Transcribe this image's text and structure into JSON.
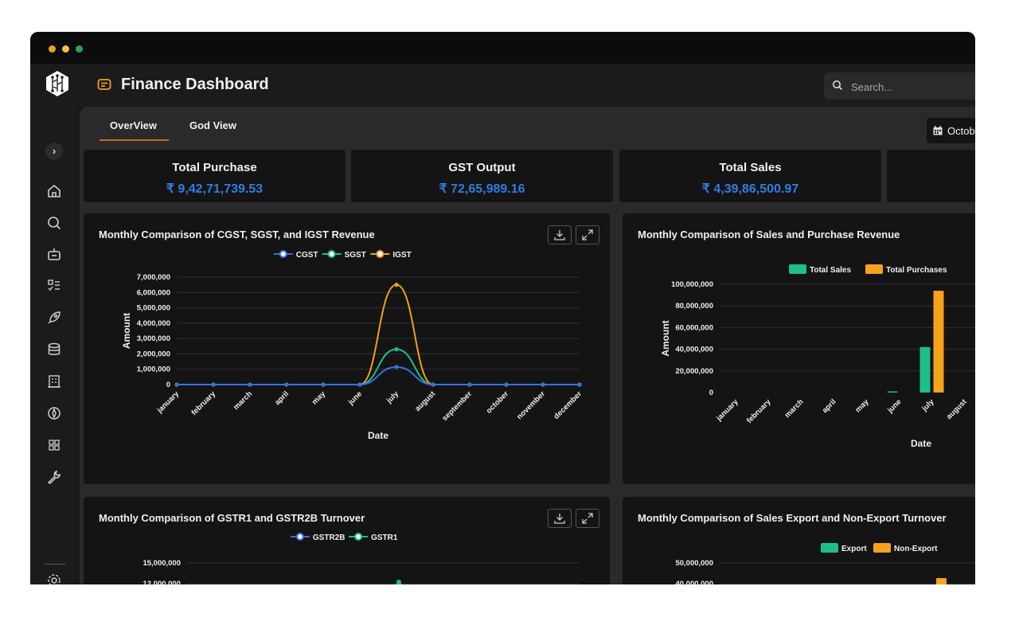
{
  "app": {
    "title": "Finance Dashboard",
    "search_placeholder": "Search...",
    "accent": "#c0701a",
    "value_color": "#2f7de1"
  },
  "sidebar": {
    "icons": [
      "home-icon",
      "search-icon",
      "robot-icon",
      "checklist-icon",
      "rocket-icon",
      "database-icon",
      "building-icon",
      "compass-icon",
      "grid-icon",
      "wrench-icon",
      "settings-icon",
      "code-icon"
    ]
  },
  "tabs": [
    {
      "label": "OverView",
      "active": true
    },
    {
      "label": "God View",
      "active": false
    }
  ],
  "date_filter": {
    "label": "Octob"
  },
  "stats": [
    {
      "label": "Total Purchase",
      "value": "₹ 9,42,71,739.53"
    },
    {
      "label": "GST Output",
      "value": "₹ 72,65,989.16"
    },
    {
      "label": "Total Sales",
      "value": "₹ 4,39,86,500.97"
    },
    {
      "label": "",
      "value": ""
    }
  ],
  "chart_data": [
    {
      "type": "line",
      "title": "Monthly Comparison of CGST, SGST, and IGST Revenue",
      "xlabel": "Date",
      "ylabel": "Amount",
      "ylim": [
        0,
        7000000
      ],
      "yticks": [
        "7,000,000",
        "6,000,000",
        "5,000,000",
        "4,000,000",
        "3,000,000",
        "2,000,000",
        "1,000,000",
        "0"
      ],
      "categories": [
        "january",
        "february",
        "march",
        "april",
        "may",
        "june",
        "july",
        "august",
        "september",
        "october",
        "november",
        "december"
      ],
      "series": [
        {
          "name": "CGST",
          "color": "#3b6fe0",
          "values": [
            0,
            0,
            0,
            0,
            0,
            0,
            1150000,
            0,
            0,
            0,
            0,
            0
          ]
        },
        {
          "name": "SGST",
          "color": "#1dbf85",
          "values": [
            0,
            0,
            0,
            0,
            0,
            0,
            2300000,
            0,
            0,
            0,
            0,
            0
          ]
        },
        {
          "name": "IGST",
          "color": "#f0a01c",
          "values": [
            0,
            0,
            0,
            0,
            0,
            0,
            6500000,
            0,
            0,
            0,
            0,
            0
          ]
        }
      ],
      "legend": "top-center"
    },
    {
      "type": "bar",
      "title": "Monthly Comparison of Sales and Purchase Revenue",
      "xlabel": "Date",
      "ylabel": "Amount",
      "ylim": [
        0,
        100000000
      ],
      "yticks": [
        "100,000,000",
        "80,000,000",
        "60,000,000",
        "40,000,000",
        "20,000,000",
        "0"
      ],
      "categories": [
        "january",
        "february",
        "march",
        "april",
        "may",
        "june",
        "july",
        "august"
      ],
      "series": [
        {
          "name": "Total Sales",
          "color": "#1dbf85",
          "values": [
            0,
            0,
            0,
            0,
            0,
            700000,
            42000000,
            0
          ]
        },
        {
          "name": "Total Purchases",
          "color": "#f7a21b",
          "values": [
            0,
            0,
            0,
            0,
            0,
            0,
            94000000,
            0
          ]
        }
      ],
      "legend": "top-right"
    },
    {
      "type": "line",
      "title": "Monthly Comparison of GSTR1 and GSTR2B Turnover",
      "ylim": [
        0,
        15000000
      ],
      "yticks": [
        "15,000,000",
        "12,000,000"
      ],
      "series": [
        {
          "name": "GSTR2B",
          "color": "#3b6fe0"
        },
        {
          "name": "GSTR1",
          "color": "#1dbf85"
        }
      ],
      "legend": "top-center"
    },
    {
      "type": "bar",
      "title": "Monthly Comparison of Sales Export and Non-Export Turnover",
      "ylim": [
        0,
        50000000
      ],
      "yticks": [
        "50,000,000",
        "40,000,000"
      ],
      "series": [
        {
          "name": "Export",
          "color": "#1dbf85"
        },
        {
          "name": "Non-Export",
          "color": "#f7a21b"
        }
      ],
      "legend": "top-right"
    }
  ]
}
